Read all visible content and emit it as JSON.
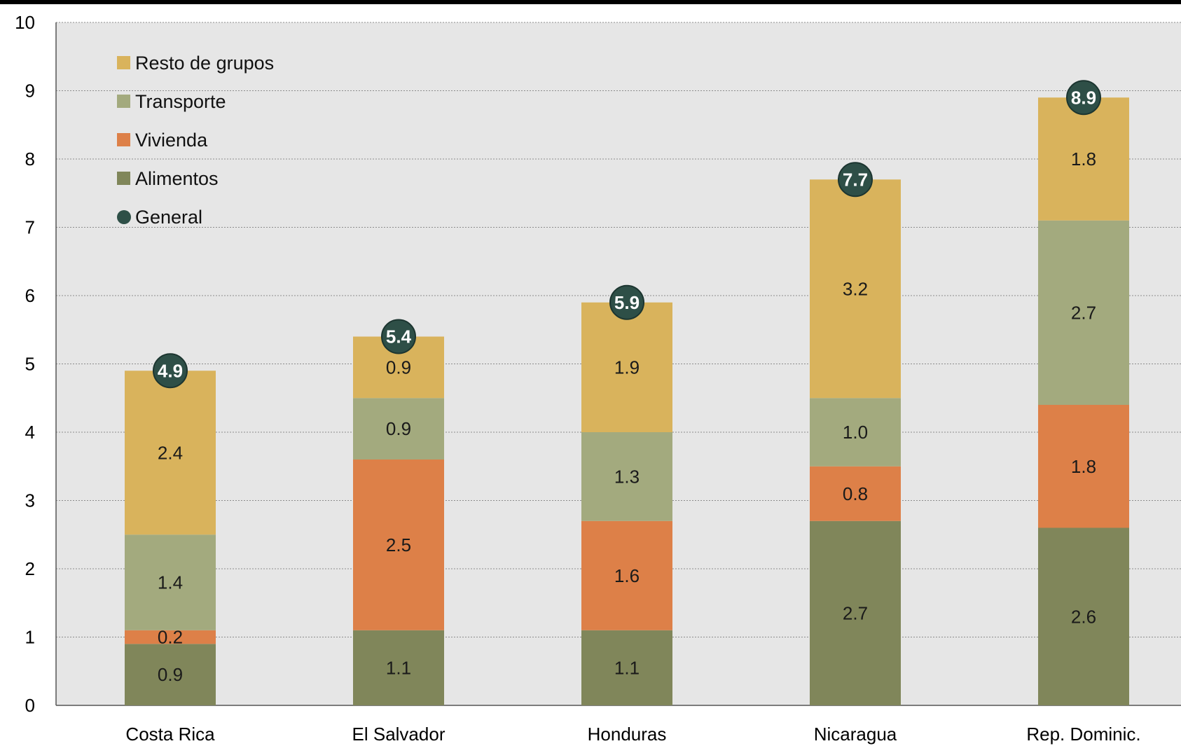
{
  "chart_data": {
    "type": "bar",
    "stacked": true,
    "title": "",
    "xlabel": "",
    "ylabel": "",
    "ylim": [
      0,
      10
    ],
    "yticks": [
      0,
      1,
      2,
      3,
      4,
      5,
      6,
      7,
      8,
      9,
      10
    ],
    "grid": true,
    "legend_position": "top-left",
    "categories": [
      "Costa Rica",
      "El Salvador",
      "Honduras",
      "Nicaragua",
      "Rep. Dominic."
    ],
    "series": [
      {
        "name": "Alimentos",
        "color": "#80865a",
        "values": [
          0.9,
          1.1,
          1.1,
          2.7,
          2.6
        ]
      },
      {
        "name": "Vivienda",
        "color": "#dd8048",
        "values": [
          0.2,
          2.5,
          1.6,
          0.8,
          1.8
        ]
      },
      {
        "name": "Transporte",
        "color": "#a3aa7e",
        "values": [
          1.4,
          0.9,
          1.3,
          1.0,
          2.7
        ]
      },
      {
        "name": "Resto de grupos",
        "color": "#d9b35c",
        "values": [
          2.4,
          0.9,
          1.9,
          3.2,
          1.8
        ]
      }
    ],
    "total_series": {
      "name": "General",
      "color": "#2e4f47",
      "values": [
        4.9,
        5.4,
        5.9,
        7.7,
        8.9
      ]
    },
    "legend_order": [
      "Resto de grupos",
      "Transporte",
      "Vivienda",
      "Alimentos",
      "General"
    ],
    "plot_background": "#e6e6e6"
  }
}
